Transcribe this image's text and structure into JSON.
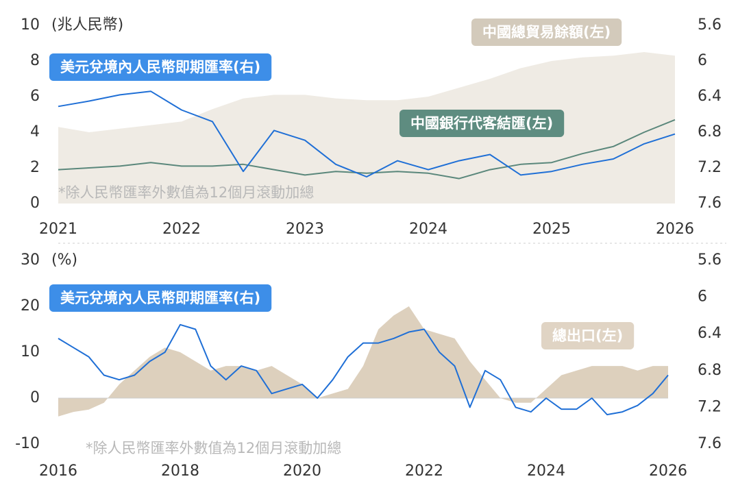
{
  "chart_data": [
    {
      "type": "line",
      "y_label": "(兆人民幣)",
      "note": "*除人民幣匯率外數值為12個月滾動加總",
      "x": [
        2021.0,
        2021.25,
        2021.5,
        2021.75,
        2022.0,
        2022.25,
        2022.5,
        2022.75,
        2023.0,
        2023.25,
        2023.5,
        2023.75,
        2024.0,
        2024.25,
        2024.5,
        2024.75,
        2025.0,
        2025.25,
        2025.5,
        2025.75,
        2026.0
      ],
      "xlim": [
        2021,
        2026
      ],
      "xticks": [
        2021,
        2022,
        2023,
        2024,
        2025,
        2026
      ],
      "ylim": [
        0,
        10
      ],
      "yticks": [
        0,
        2,
        4,
        6,
        8,
        10
      ],
      "y2lim": [
        7.6,
        5.6
      ],
      "y2ticks": [
        5.6,
        6,
        6.4,
        6.8,
        7.2,
        7.6
      ],
      "series": [
        {
          "name": "中國總貿易餘額(左)",
          "style": "area",
          "color": "#efebe4",
          "tag_color": "#d3cabb",
          "values": [
            4.3,
            4.0,
            4.2,
            4.4,
            4.6,
            5.3,
            5.9,
            6.1,
            6.1,
            5.9,
            5.8,
            5.8,
            6.0,
            6.5,
            7.0,
            7.6,
            8.0,
            8.2,
            8.3,
            8.5,
            8.3
          ]
        },
        {
          "name": "中國銀行代客結匯(左)",
          "style": "line",
          "color": "#5a877b",
          "tag_color": "#5e8c80",
          "values": [
            1.9,
            2.0,
            2.1,
            2.3,
            2.1,
            2.1,
            2.2,
            1.9,
            1.6,
            1.8,
            1.7,
            1.8,
            1.7,
            1.4,
            1.9,
            2.2,
            2.3,
            2.8,
            3.2,
            4.0,
            4.7
          ]
        },
        {
          "name": "美元兌境內人民幣即期匯率(右)",
          "style": "line",
          "axis": "y2",
          "color": "#1f6fd6",
          "tag_color": "#3d8ee8",
          "values": [
            6.51,
            6.45,
            6.38,
            6.34,
            6.55,
            6.68,
            7.24,
            6.78,
            6.89,
            7.16,
            7.3,
            7.12,
            7.22,
            7.12,
            7.05,
            7.28,
            7.24,
            7.16,
            7.1,
            6.93,
            6.82
          ]
        }
      ]
    },
    {
      "type": "line",
      "y_label": "(%)",
      "note": "*除人民幣匯率外數值為12個月滾動加總",
      "x": [
        2016.0,
        2016.25,
        2016.5,
        2016.75,
        2017.0,
        2017.25,
        2017.5,
        2017.75,
        2018.0,
        2018.25,
        2018.5,
        2018.75,
        2019.0,
        2019.25,
        2019.5,
        2019.75,
        2020.0,
        2020.25,
        2020.5,
        2020.75,
        2021.0,
        2021.25,
        2021.5,
        2021.75,
        2022.0,
        2022.25,
        2022.5,
        2022.75,
        2023.0,
        2023.25,
        2023.5,
        2023.75,
        2024.0,
        2024.25,
        2024.5,
        2024.75,
        2025.0,
        2025.25,
        2025.5,
        2025.75,
        2026.0
      ],
      "xlim": [
        2016,
        2026
      ],
      "xticks": [
        2016,
        2018,
        2020,
        2022,
        2024,
        2026
      ],
      "ylim": [
        -10,
        30
      ],
      "yticks": [
        -10,
        0,
        10,
        20,
        30
      ],
      "y2lim": [
        7.6,
        5.6
      ],
      "y2ticks": [
        5.6,
        6,
        6.4,
        6.8,
        7.2,
        7.6
      ],
      "series": [
        {
          "name": "總出口(左)",
          "style": "area",
          "color": "#ddd0bd",
          "tag_color": "#e0d4c4",
          "values": [
            -4,
            -3,
            -2.5,
            -1,
            3,
            6,
            9,
            11,
            10,
            8,
            6,
            7,
            7,
            6,
            7,
            5,
            3,
            0,
            1,
            2,
            7,
            15,
            18,
            20,
            15,
            14,
            13,
            8,
            4,
            0,
            -1,
            -1,
            2,
            5,
            6,
            7,
            7,
            7,
            6,
            7,
            7
          ]
        },
        {
          "name": "美元兌境內人民幣即期匯率(右)",
          "style": "line",
          "axis": "y2",
          "color": "#1f6fd6",
          "tag_color": "#3d8ee8",
          "values": [
            6.45,
            6.55,
            6.65,
            6.85,
            6.9,
            6.85,
            6.7,
            6.6,
            6.3,
            6.35,
            6.75,
            6.9,
            6.75,
            6.8,
            7.05,
            7.0,
            6.95,
            7.1,
            6.9,
            6.65,
            6.5,
            6.5,
            6.45,
            6.38,
            6.35,
            6.6,
            6.75,
            7.2,
            6.8,
            6.9,
            7.2,
            7.25,
            7.1,
            7.22,
            7.22,
            7.1,
            7.28,
            7.25,
            7.18,
            7.05,
            6.85
          ]
        }
      ]
    }
  ]
}
